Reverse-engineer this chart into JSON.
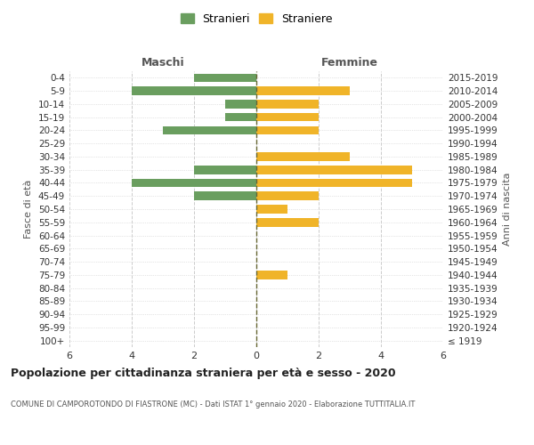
{
  "age_groups": [
    "100+",
    "95-99",
    "90-94",
    "85-89",
    "80-84",
    "75-79",
    "70-74",
    "65-69",
    "60-64",
    "55-59",
    "50-54",
    "45-49",
    "40-44",
    "35-39",
    "30-34",
    "25-29",
    "20-24",
    "15-19",
    "10-14",
    "5-9",
    "0-4"
  ],
  "birth_years": [
    "≤ 1919",
    "1920-1924",
    "1925-1929",
    "1930-1934",
    "1935-1939",
    "1940-1944",
    "1945-1949",
    "1950-1954",
    "1955-1959",
    "1960-1964",
    "1965-1969",
    "1970-1974",
    "1975-1979",
    "1980-1984",
    "1985-1989",
    "1990-1994",
    "1995-1999",
    "2000-2004",
    "2005-2009",
    "2010-2014",
    "2015-2019"
  ],
  "males": [
    0,
    0,
    0,
    0,
    0,
    0,
    0,
    0,
    0,
    0,
    0,
    2,
    4,
    2,
    0,
    0,
    3,
    1,
    1,
    4,
    2
  ],
  "females": [
    0,
    0,
    0,
    0,
    0,
    1,
    0,
    0,
    0,
    2,
    1,
    2,
    5,
    5,
    3,
    0,
    2,
    2,
    2,
    3,
    0
  ],
  "male_color": "#6a9e5f",
  "female_color": "#f0b429",
  "title_main": "Popolazione per cittadinanza straniera per età e sesso - 2020",
  "title_sub": "COMUNE DI CAMPOROTONDO DI FIASTRONE (MC) - Dati ISTAT 1° gennaio 2020 - Elaborazione TUTTITALIA.IT",
  "legend_male": "Stranieri",
  "legend_female": "Straniere",
  "xlabel_left": "Maschi",
  "xlabel_right": "Femmine",
  "ylabel_left": "Fasce di età",
  "ylabel_right": "Anni di nascita",
  "xlim": 6,
  "background_color": "#ffffff",
  "grid_color": "#cccccc"
}
